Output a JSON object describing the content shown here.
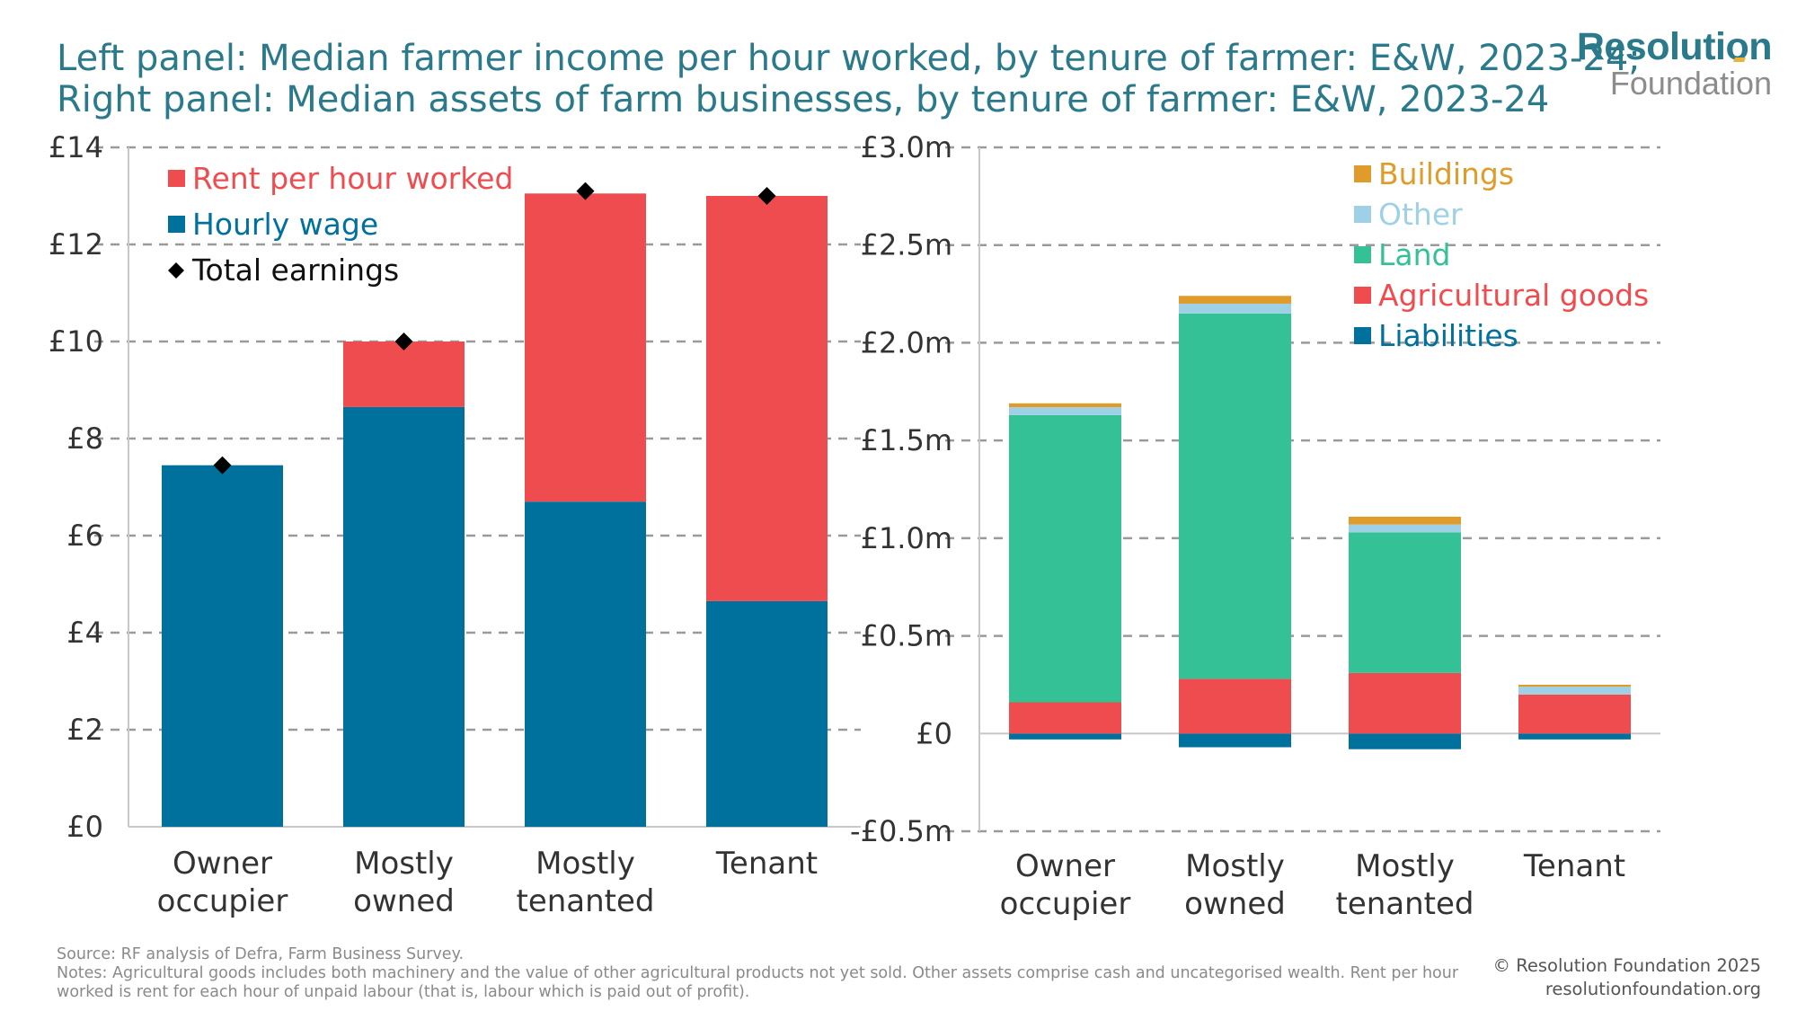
{
  "title": {
    "line1": "Left panel: Median farmer income per hour worked, by tenure of farmer: E&W, 2023-24;",
    "line2": "Right panel: Median assets of farm businesses, by tenure of farmer: E&W, 2023-24"
  },
  "brand": {
    "top": "Resolution",
    "bottom": "Foundation",
    "accent": "#e8b53a"
  },
  "footer": {
    "source": "Source: RF analysis of Defra, Farm Business Survey.",
    "notes": "Notes: Agricultural goods includes both machinery and the value of other agricultural products not yet sold. Other assets comprise cash and uncategorised wealth. Rent per hour worked is rent for each hour of unpaid labour (that is, labour which is paid out of profit).",
    "copyright": "© Resolution Foundation 2025",
    "website": "resolutionfoundation.org"
  },
  "chart_data": [
    {
      "type": "bar",
      "stacked": true,
      "categories": [
        [
          "Owner",
          "occupier"
        ],
        [
          "Mostly",
          "owned"
        ],
        [
          "Mostly",
          "tenanted"
        ],
        [
          "Tenant"
        ]
      ],
      "series": [
        {
          "name": "Hourly wage",
          "color": "#00719c",
          "values": [
            7.45,
            8.65,
            6.7,
            4.65
          ]
        },
        {
          "name": "Rent per hour worked",
          "color": "#ef4c4f",
          "values": [
            0,
            1.35,
            6.35,
            8.35
          ]
        }
      ],
      "markers": {
        "name": "Total earnings",
        "color": "#000000",
        "values": [
          7.45,
          10.0,
          13.1,
          13.0
        ]
      },
      "legend_order": [
        "Rent per hour worked",
        "Hourly wage",
        "Total earnings"
      ],
      "legend_placement": "top-left",
      "yticks": [
        0,
        2,
        4,
        6,
        8,
        10,
        12,
        14
      ],
      "ytick_labels": [
        "£0",
        "£2",
        "£4",
        "£6",
        "£8",
        "£10",
        "£12",
        "£14"
      ],
      "ylim": [
        0,
        14
      ],
      "grid": true
    },
    {
      "type": "bar",
      "stacked": true,
      "categories": [
        [
          "Owner",
          "occupier"
        ],
        [
          "Mostly",
          "owned"
        ],
        [
          "Mostly",
          "tenanted"
        ],
        [
          "Tenant"
        ]
      ],
      "series": [
        {
          "name": "Liabilities",
          "color": "#00719c",
          "values": [
            -0.03,
            -0.07,
            -0.08,
            -0.03
          ]
        },
        {
          "name": "Agricultural goods",
          "color": "#ef4c4f",
          "values": [
            0.16,
            0.28,
            0.31,
            0.2
          ]
        },
        {
          "name": "Land",
          "color": "#35c196",
          "values": [
            1.47,
            1.87,
            0.72,
            0.0
          ]
        },
        {
          "name": "Other",
          "color": "#9fd1e6",
          "values": [
            0.04,
            0.05,
            0.04,
            0.04
          ]
        },
        {
          "name": "Buildings",
          "color": "#e09c2a",
          "values": [
            0.02,
            0.04,
            0.04,
            0.01
          ]
        }
      ],
      "legend_order": [
        "Buildings",
        "Other",
        "Land",
        "Agricultural goods",
        "Liabilities"
      ],
      "legend_placement": "top-right",
      "yticks": [
        -0.5,
        0,
        0.5,
        1.0,
        1.5,
        2.0,
        2.5,
        3.0
      ],
      "ytick_labels": [
        "-£0.5m",
        "£0",
        "£0.5m",
        "£1.0m",
        "£1.5m",
        "£2.0m",
        "£2.5m",
        "£3.0m"
      ],
      "ylim": [
        -0.5,
        3.0
      ],
      "grid": true
    }
  ]
}
